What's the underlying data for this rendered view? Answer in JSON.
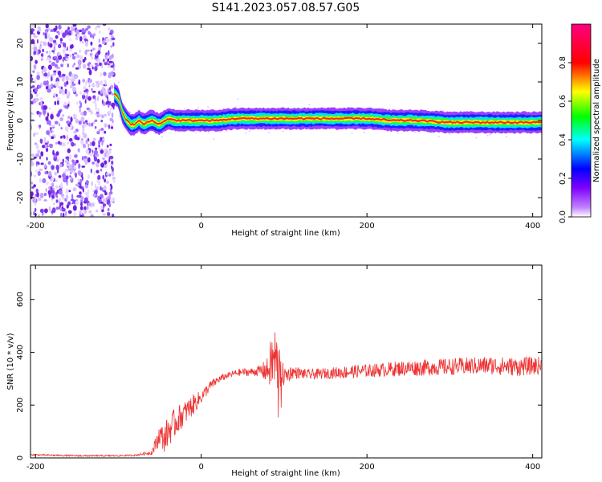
{
  "title": "S141.2023.057.08.57.G05",
  "chart_data": [
    {
      "type": "heatmap",
      "xlabel": "Height of straight line (km)",
      "ylabel": "Frequency (Hz)",
      "xlim": [
        -206,
        411
      ],
      "ylim": [
        -25,
        25
      ],
      "xticks": [
        -200,
        0,
        200,
        400
      ],
      "yticks": [
        -20,
        -10,
        0,
        10,
        20
      ],
      "colorbar": {
        "label": "Normalized spectral amplitude",
        "range": [
          0,
          1
        ],
        "ticks": [
          0.0,
          0.2,
          0.4,
          0.6,
          0.8
        ],
        "colors": [
          "#ffffff",
          "#8000ff",
          "#0000ff",
          "#00ffff",
          "#00ff00",
          "#ffff00",
          "#ff0000",
          "#ff00a0"
        ]
      },
      "noise_region": {
        "x_range": [
          -206,
          -105
        ],
        "freq_range": [
          -25,
          25
        ]
      },
      "ridge": {
        "x": [
          -105,
          -100,
          -95,
          -90,
          -85,
          -80,
          -75,
          -70,
          -60,
          -50,
          -40,
          -30,
          -20,
          0,
          20,
          40,
          60,
          100,
          150,
          200,
          230,
          260,
          300,
          320,
          350,
          380,
          411
        ],
        "freq": [
          7,
          6,
          2,
          0,
          -1,
          -1,
          0,
          -1,
          0,
          -1,
          0.5,
          0,
          0,
          0,
          0,
          0.5,
          0.5,
          0.5,
          0.5,
          0.5,
          0,
          0,
          -0.5,
          -0.5,
          -0.5,
          -0.5,
          -0.5
        ]
      }
    },
    {
      "type": "line",
      "xlabel": "Height of straight line (km)",
      "ylabel": "SNR (10 * v/v)",
      "xlim": [
        -206,
        411
      ],
      "ylim": [
        0,
        730
      ],
      "xticks": [
        -200,
        0,
        200,
        400
      ],
      "yticks": [
        0,
        200,
        400,
        600
      ],
      "color": "#ee3333",
      "series": [
        {
          "x": [
            -206,
            -180,
            -150,
            -120,
            -100,
            -80,
            -70,
            -60,
            -55,
            -50,
            -45,
            -40,
            -30,
            -20,
            -10,
            0,
            10,
            20,
            30,
            40,
            50,
            60,
            70,
            80,
            85,
            90,
            95,
            100,
            110,
            120,
            130,
            150,
            175,
            200,
            250,
            300,
            350,
            380,
            411
          ],
          "values": [
            12,
            10,
            8,
            8,
            8,
            10,
            15,
            20,
            50,
            90,
            70,
            100,
            140,
            170,
            200,
            230,
            270,
            295,
            310,
            320,
            325,
            325,
            330,
            330,
            360,
            370,
            320,
            310,
            325,
            320,
            315,
            320,
            325,
            330,
            340,
            345,
            350,
            345,
            350
          ],
          "noise": [
            3,
            3,
            3,
            3,
            3,
            3,
            5,
            8,
            30,
            40,
            50,
            60,
            55,
            45,
            40,
            25,
            20,
            15,
            12,
            12,
            15,
            15,
            20,
            50,
            110,
            140,
            80,
            35,
            25,
            20,
            20,
            20,
            25,
            25,
            30,
            32,
            35,
            35,
            35
          ]
        }
      ]
    }
  ]
}
